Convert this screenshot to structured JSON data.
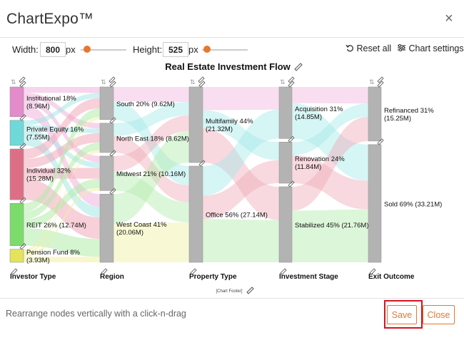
{
  "app": {
    "title": "ChartExpo™",
    "close_glyph": "×"
  },
  "toolbar": {
    "width_label": "Width:",
    "width_value": "800",
    "width_unit": "px",
    "height_label": "Height:",
    "height_value": "525",
    "height_unit": "px",
    "reset_label": "Reset all",
    "settings_label": "Chart settings"
  },
  "chart_data": {
    "type": "sankey",
    "title": "Real Estate Investment Flow",
    "footer": "[Chart Footer]",
    "stages": [
      {
        "name": "Investor Type",
        "nodes": [
          {
            "label": "Institutional 18%",
            "value_label": "(8.96M)",
            "value": 8.96,
            "color": "#e38bcb"
          },
          {
            "label": "Private Equity 16%",
            "value_label": "(7.55M)",
            "value": 7.55,
            "color": "#6fd8d8"
          },
          {
            "label": "Individual 32%",
            "value_label": "(15.28M)",
            "value": 15.28,
            "color": "#dc6f86"
          },
          {
            "label": "REIT 26% (12.74M)",
            "value_label": "",
            "value": 12.74,
            "color": "#7bdc6b"
          },
          {
            "label": "Pension Fund 8%",
            "value_label": "(3.93M)",
            "value": 3.93,
            "color": "#e3e35c"
          }
        ]
      },
      {
        "name": "Region",
        "nodes": [
          {
            "label": "South 20% (9.62M)",
            "value_label": "",
            "value": 9.62
          },
          {
            "label": "North East 18% (8.62M)",
            "value_label": "",
            "value": 8.62
          },
          {
            "label": "Midwest 21% (10.16M)",
            "value_label": "",
            "value": 10.16
          },
          {
            "label": "West Coast 41%",
            "value_label": "(20.06M)",
            "value": 20.06
          }
        ]
      },
      {
        "name": "Property Type",
        "nodes": [
          {
            "label": "Multifamily 44%",
            "value_label": "(21.32M)",
            "value": 21.32
          },
          {
            "label": "Office 56% (27.14M)",
            "value_label": "",
            "value": 27.14
          }
        ]
      },
      {
        "name": "Investment Stage",
        "nodes": [
          {
            "label": "Acquisition 31%",
            "value_label": "(14.85M)",
            "value": 14.85
          },
          {
            "label": "Renovation 24%",
            "value_label": "(11.84M)",
            "value": 11.84
          },
          {
            "label": "Stabilized 45% (21.76M)",
            "value_label": "",
            "value": 21.76
          }
        ]
      },
      {
        "name": "Exit Outcome",
        "nodes": [
          {
            "label": "Refinanced 31%",
            "value_label": "(15.25M)",
            "value": 15.25
          },
          {
            "label": "Sold 69% (33.21M)",
            "value_label": "",
            "value": 33.21
          }
        ]
      }
    ],
    "colors": {
      "node": "#b3b3b3",
      "link_gray": "#d9d9d9"
    }
  },
  "footer": {
    "hint": "Rearrange nodes vertically with a click-n-drag",
    "save_label": "Save",
    "close_label": "Close"
  }
}
